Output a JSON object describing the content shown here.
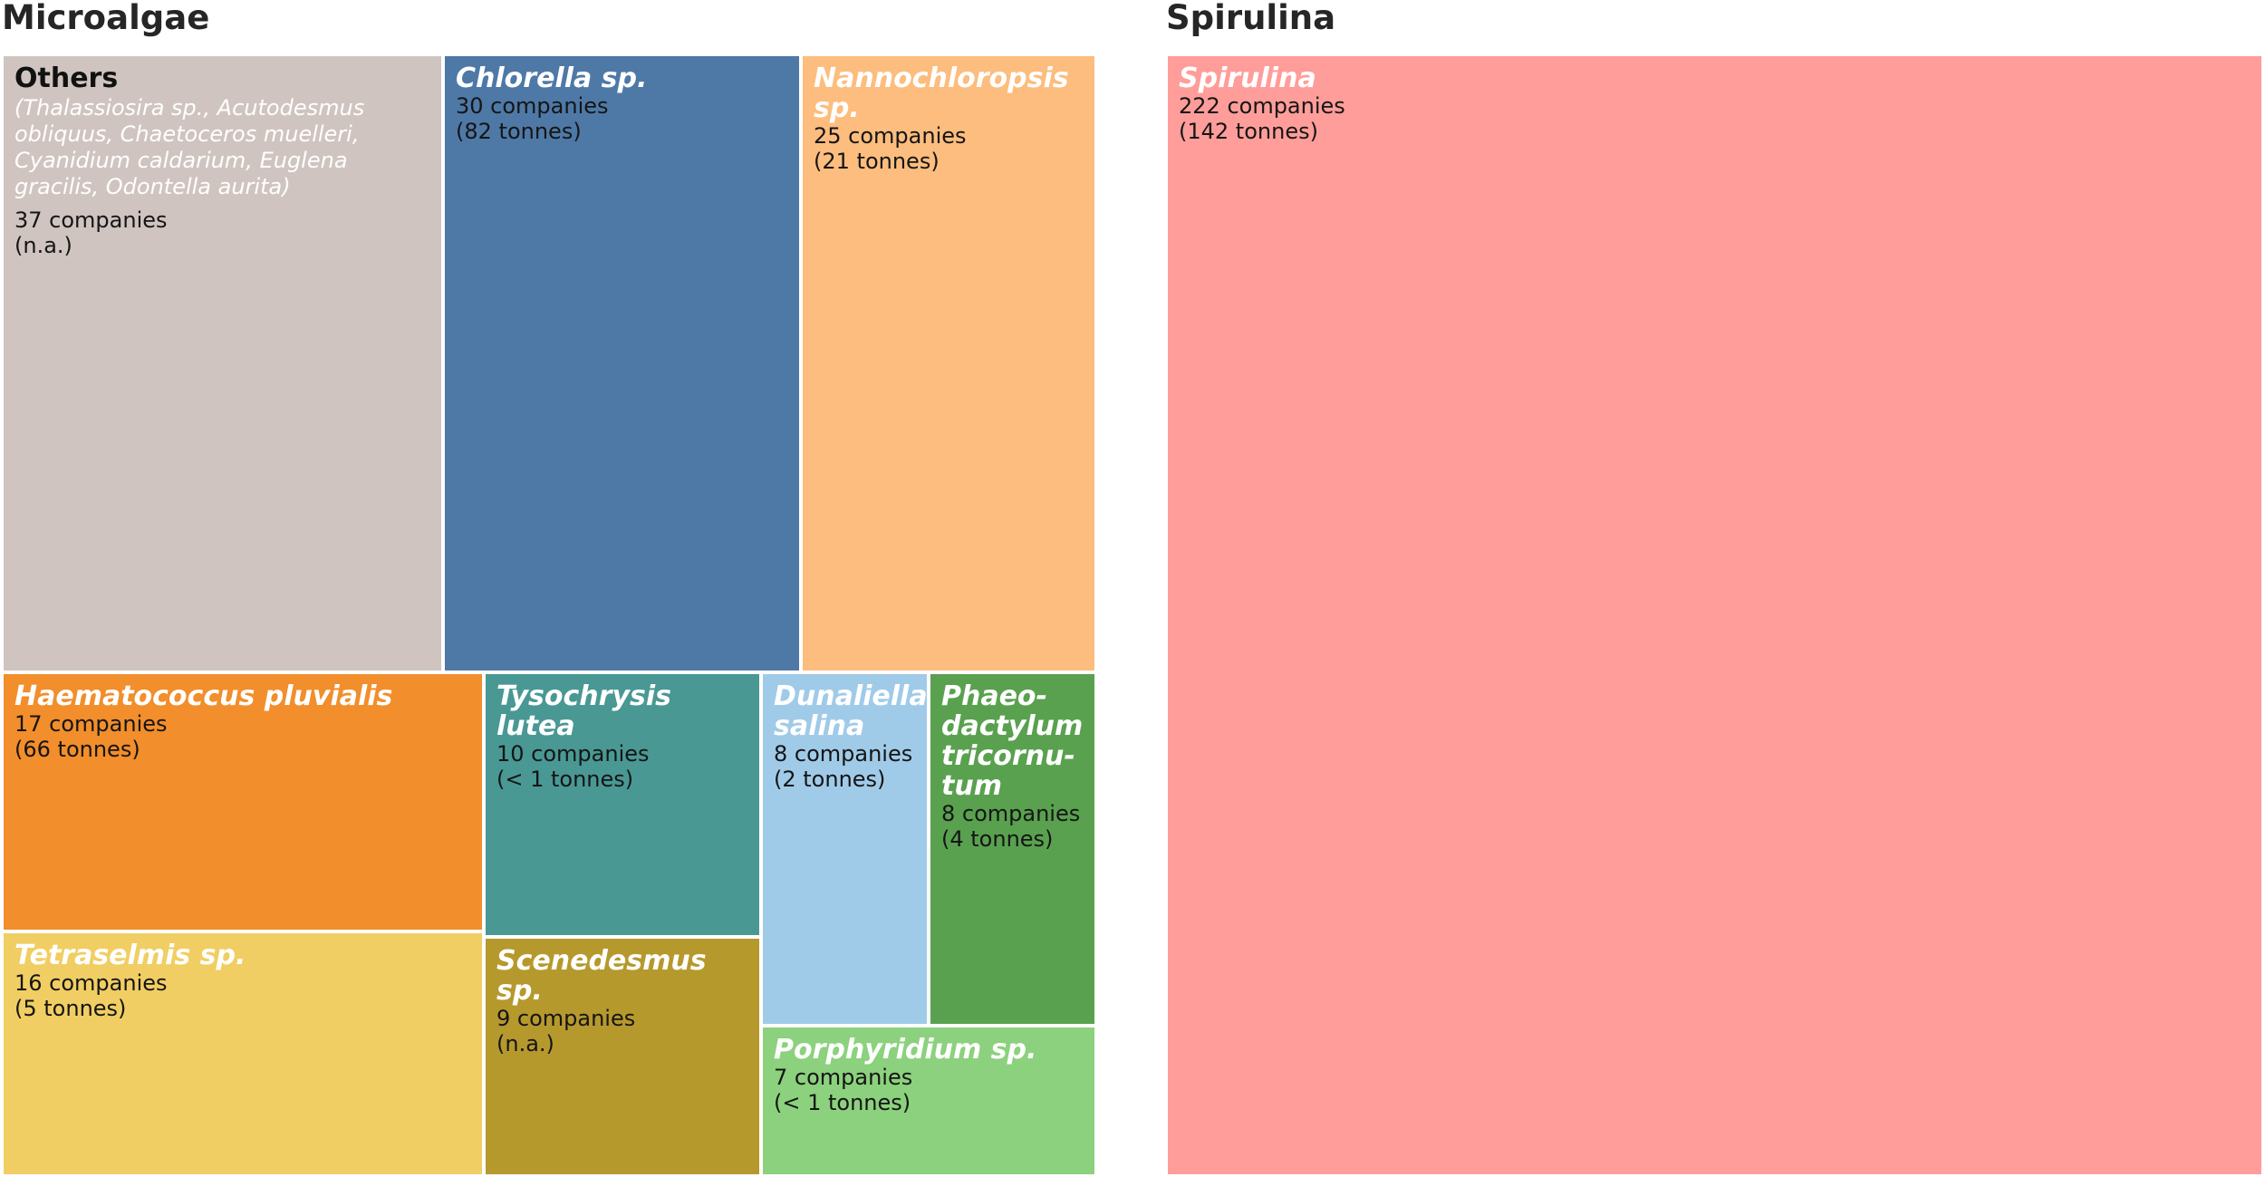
{
  "chart_data": {
    "type": "treemap",
    "groups": [
      {
        "name": "Microalgae",
        "tiles": [
          {
            "name": "Others",
            "note": "(Thalassiosira sp., Acutodesmus obliquus, Chaetoceros muelleri, Cyanidium caldarium, Euglena gracilis, Odontella aurita)",
            "companies": 37,
            "companies_label": "37 companies",
            "tonnes_label": "(n.a.)",
            "color": "#d0c4c0"
          },
          {
            "name": "Chlorella sp.",
            "companies": 30,
            "companies_label": "30 companies",
            "tonnes_label": "(82 tonnes)",
            "color": "#4e79a7"
          },
          {
            "name": "Nannochloropsis sp.",
            "companies": 25,
            "companies_label": "25 companies",
            "tonnes_label": "(21 tonnes)",
            "color": "#fcbd7e"
          },
          {
            "name": "Haematococcus pluvialis",
            "companies": 17,
            "companies_label": "17 companies",
            "tonnes_label": "(66 tonnes)",
            "color": "#f28e2b"
          },
          {
            "name": "Tysochrysis lutea",
            "companies": 10,
            "companies_label": "10 companies",
            "tonnes_label": "(< 1 tonnes)",
            "color": "#499894"
          },
          {
            "name": "Dunaliella salina",
            "companies": 8,
            "companies_label": "8 companies",
            "tonnes_label": "(2 tonnes)",
            "color": "#a0cbe8"
          },
          {
            "name": "Phaeo-dactylum tricornu-tum",
            "companies": 8,
            "companies_label": "8 companies",
            "tonnes_label": "(4 tonnes)",
            "color": "#59a14f"
          },
          {
            "name": "Tetraselmis sp.",
            "companies": 16,
            "companies_label": "16 companies",
            "tonnes_label": "(5 tonnes)",
            "color": "#f1ce63"
          },
          {
            "name": "Scenedesmus sp.",
            "companies": 9,
            "companies_label": "9 companies",
            "tonnes_label": "(n.a.)",
            "color": "#b6992d"
          },
          {
            "name": "Porphyridium sp.",
            "companies": 7,
            "companies_label": "7 companies",
            "tonnes_label": "(< 1 tonnes)",
            "color": "#8cd17d"
          }
        ]
      },
      {
        "name": "Spirulina",
        "tiles": [
          {
            "name": "Spirulina",
            "companies": 222,
            "companies_label": "222 companies",
            "tonnes_label": "(142 tonnes)",
            "color": "#ff9d9a"
          }
        ]
      }
    ]
  }
}
